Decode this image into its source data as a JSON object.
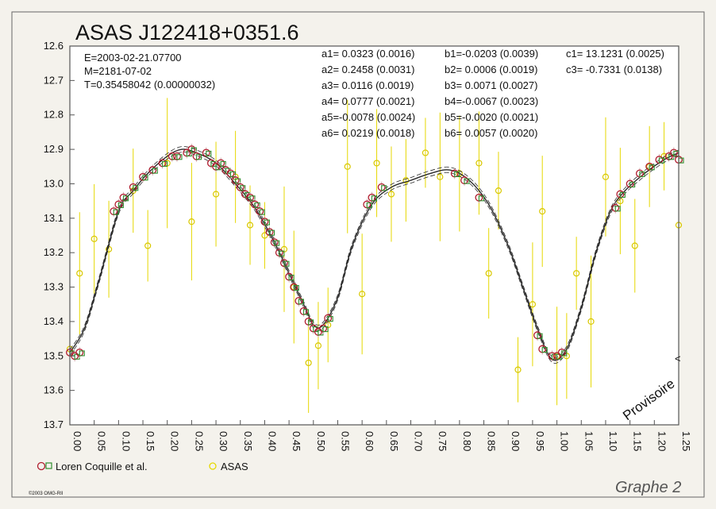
{
  "chart_data": {
    "type": "scatter",
    "title": "ASAS J122418+0351.6",
    "info": [
      "E=2003-02-21.07700",
      "M=2181-07-02",
      "T=0.35458042 (0.00000032)"
    ],
    "coefficients": {
      "a": [
        "a1= 0.0323 (0.0016)",
        "a2= 0.2458 (0.0031)",
        "a3= 0.0116 (0.0019)",
        "a4= 0.0777 (0.0021)",
        "a5=-0.0078 (0.0024)",
        "a6= 0.0219 (0.0018)"
      ],
      "b": [
        "b1=-0.0203 (0.0039)",
        "b2= 0.0006 (0.0019)",
        "b3= 0.0071 (0.0027)",
        "b4=-0.0067 (0.0023)",
        "b5=-0.0020 (0.0021)",
        "b6= 0.0057 (0.0020)"
      ],
      "c": [
        "c1= 13.1231 (0.0025)",
        "c3= -0.7331 (0.0138)"
      ]
    },
    "xlim": [
      0,
      1.25
    ],
    "ylim": [
      12.6,
      13.7
    ],
    "y_inverted": true,
    "x_ticks": [
      "0.00",
      "0.05",
      "0.10",
      "0.15",
      "0.20",
      "0.25",
      "0.30",
      "0.35",
      "0.40",
      "0.45",
      "0.50",
      "0.55",
      "0.60",
      "0.65",
      "0.70",
      "0.75",
      "0.80",
      "0.85",
      "0.90",
      "0.95",
      "1.00",
      "1.05",
      "1.10",
      "1.15",
      "1.20",
      "1.25"
    ],
    "y_ticks": [
      "12.6",
      "12.7",
      "12.8",
      "12.9",
      "13.0",
      "13.1",
      "13.2",
      "13.3",
      "13.4",
      "13.5",
      "13.6",
      "13.7"
    ],
    "grid": false,
    "legend": [
      "Loren Coquille et al.",
      "ASAS"
    ],
    "legend_position": "bottom-left",
    "annotation": "Provisoire",
    "fit_curve": {
      "phase": [
        0.0,
        0.03,
        0.06,
        0.1,
        0.13,
        0.16,
        0.2,
        0.23,
        0.26,
        0.3,
        0.34,
        0.38,
        0.42,
        0.45,
        0.48,
        0.5,
        0.52,
        0.55,
        0.58,
        0.62,
        0.66,
        0.7,
        0.74,
        0.78,
        0.82,
        0.86,
        0.9,
        0.93,
        0.96,
        0.99,
        1.02,
        1.05,
        1.08,
        1.11,
        1.14,
        1.18,
        1.22,
        1.25
      ],
      "mag": [
        13.49,
        13.42,
        13.28,
        13.08,
        13.02,
        12.97,
        12.92,
        12.9,
        12.91,
        12.94,
        13.0,
        13.07,
        13.17,
        13.26,
        13.35,
        13.41,
        13.41,
        13.33,
        13.18,
        13.06,
        13.01,
        12.99,
        12.97,
        12.96,
        12.99,
        13.06,
        13.18,
        13.3,
        13.42,
        13.51,
        13.48,
        13.36,
        13.2,
        13.08,
        13.02,
        12.97,
        12.93,
        12.91
      ]
    },
    "series": [
      {
        "name": "Loren Coquille et al.",
        "color": "#b01c2e",
        "phase": [
          0.0,
          0.01,
          0.02,
          0.09,
          0.1,
          0.11,
          0.13,
          0.15,
          0.17,
          0.19,
          0.21,
          0.22,
          0.24,
          0.25,
          0.26,
          0.28,
          0.29,
          0.3,
          0.31,
          0.32,
          0.33,
          0.34,
          0.35,
          0.36,
          0.37,
          0.38,
          0.39,
          0.4,
          0.41,
          0.42,
          0.43,
          0.44,
          0.45,
          0.46,
          0.47,
          0.48,
          0.49,
          0.5,
          0.51,
          0.52,
          0.53,
          0.61,
          0.62,
          0.64,
          0.79,
          0.81,
          0.84,
          0.96,
          0.97,
          0.99,
          1.0,
          1.01,
          1.12,
          1.13,
          1.15,
          1.17,
          1.19,
          1.21,
          1.23,
          1.24,
          1.25
        ],
        "mag": [
          13.49,
          13.5,
          13.49,
          13.08,
          13.06,
          13.04,
          13.01,
          12.98,
          12.96,
          12.94,
          12.92,
          12.92,
          12.91,
          12.9,
          12.92,
          12.91,
          12.94,
          12.95,
          12.94,
          12.96,
          12.97,
          12.99,
          13.01,
          13.03,
          13.04,
          13.06,
          13.08,
          13.11,
          13.14,
          13.17,
          13.2,
          13.23,
          13.27,
          13.3,
          13.34,
          13.37,
          13.4,
          13.42,
          13.43,
          13.42,
          13.39,
          13.06,
          13.04,
          13.01,
          12.97,
          12.99,
          13.04,
          13.44,
          13.48,
          13.5,
          13.5,
          13.49,
          13.07,
          13.03,
          13.0,
          12.97,
          12.95,
          12.93,
          12.92,
          12.91,
          12.93
        ]
      },
      {
        "name": "ASAS",
        "color": "#e6d800",
        "phase": [
          0.0,
          0.02,
          0.05,
          0.08,
          0.13,
          0.16,
          0.2,
          0.25,
          0.3,
          0.34,
          0.37,
          0.4,
          0.44,
          0.46,
          0.49,
          0.51,
          0.53,
          0.57,
          0.6,
          0.63,
          0.66,
          0.69,
          0.73,
          0.76,
          0.8,
          0.84,
          0.86,
          0.88,
          0.92,
          0.95,
          0.97,
          1.0,
          1.02,
          1.04,
          1.07,
          1.1,
          1.13,
          1.16,
          1.19,
          1.22,
          1.25
        ],
        "mag": [
          13.48,
          13.26,
          13.16,
          13.19,
          13.02,
          13.18,
          12.94,
          13.11,
          13.03,
          12.98,
          13.12,
          13.15,
          13.19,
          13.3,
          13.52,
          13.47,
          13.41,
          12.95,
          13.32,
          12.94,
          13.03,
          12.99,
          12.91,
          12.98,
          12.97,
          12.94,
          13.26,
          13.02,
          13.54,
          13.35,
          13.08,
          13.5,
          13.5,
          13.26,
          13.4,
          12.98,
          13.05,
          13.18,
          12.95,
          12.92,
          13.12
        ]
      }
    ]
  },
  "page": {
    "graph_label": "Graphe 2",
    "copyright": "©2003 OMG-RII"
  },
  "colors": {
    "frame": "#555555",
    "curve": "#2a2a2a",
    "paper": "#f4f2ec",
    "plot_bg": "#ffffff"
  }
}
